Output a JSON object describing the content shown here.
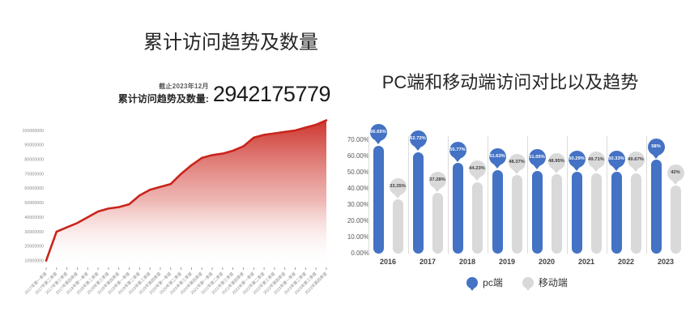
{
  "colors": {
    "line_red": "#c9241c",
    "pc_blue": "#4472c4",
    "mobile_gray": "#d9d9d9",
    "bubble_text_dark": "#404040",
    "bubble_text_light": "#ffffff",
    "axis_text": "#8c8c8c"
  },
  "chart_data": [
    {
      "type": "area",
      "title": "累计访问趋势及数量",
      "stat_note": "截止2023年12月",
      "stat_label": "累计访问趋势及数量:",
      "stat_value": "2942175779",
      "x": [
        "2017年第一季度",
        "2017年第二季度",
        "2017年第三季度",
        "2017年第四季度",
        "2018年第一季度",
        "2018年第二季度",
        "2018年第三季度",
        "2018年第四季度",
        "2019年第一季度",
        "2019年第二季度",
        "2019年第三季度",
        "2019年第四季度",
        "2020年第一季度",
        "2020年第二季度",
        "2020年第三季度",
        "2020年第四季度",
        "2021年第一季度",
        "2021年第二季度",
        "2021年第三季度",
        "2021年第四季度",
        "2022年第一季度",
        "2022年第二季度",
        "2022年第三季度",
        "2022年第四季度",
        "2023年第一季度",
        "2023年第二季度",
        "2023年第三季度",
        "2023年第四季度"
      ],
      "values": [
        10000000,
        30000000,
        33000000,
        36000000,
        40000000,
        44000000,
        46000000,
        47000000,
        49000000,
        55000000,
        59000000,
        61000000,
        63000000,
        70000000,
        76000000,
        81000000,
        83000000,
        84000000,
        86000000,
        89000000,
        95000000,
        97000000,
        98000000,
        99000000,
        100000000,
        102000000,
        104000000,
        107000000
      ],
      "yticks": [
        "100000000",
        "90000000",
        "80000000",
        "70000000",
        "60000000",
        "50000000",
        "40000000",
        "30000000",
        "20000000",
        "10000000"
      ],
      "ylim": [
        0,
        110000000
      ],
      "grid": false,
      "line_color": "#c9241c"
    },
    {
      "type": "bar",
      "title": "PC端和移动端访问对比以及趋势",
      "categories": [
        "2016",
        "2017",
        "2018",
        "2019",
        "2020",
        "2021",
        "2022",
        "2023"
      ],
      "series": [
        {
          "name": "pc端",
          "color": "#4472c4",
          "values": [
            66.65,
            62.72,
            55.77,
            51.63,
            51.05,
            50.29,
            50.33,
            58
          ],
          "labels": [
            "66.65%",
            "62.72%",
            "55.77%",
            "51.63%",
            "51.05%",
            "50.29%",
            "50.33%",
            "58%"
          ]
        },
        {
          "name": "移动端",
          "color": "#d9d9d9",
          "values": [
            33.35,
            37.28,
            44.23,
            48.37,
            48.95,
            49.71,
            49.67,
            42
          ],
          "labels": [
            "33.35%",
            "37.28%",
            "44.23%",
            "48.37%",
            "48.95%",
            "49.71%",
            "49.67%",
            "42%"
          ]
        }
      ],
      "yticks": [
        "70.00%",
        "60.00%",
        "50.00%",
        "40.00%",
        "30.00%",
        "20.00%",
        "10.00%",
        "0.00%"
      ],
      "ylim": [
        0,
        70
      ],
      "grid": false,
      "legend_position": "bottom"
    }
  ]
}
